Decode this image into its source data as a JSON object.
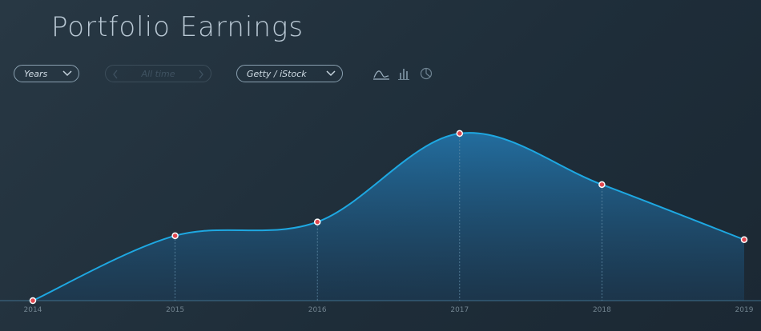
{
  "controls": {
    "period": "Years",
    "range": "All time",
    "source": "Getty / iStock"
  },
  "chart_data": {
    "type": "area",
    "title": "Portfolio Earnings",
    "categories": [
      "2014",
      "2015",
      "2016",
      "2017",
      "2018",
      "2019"
    ],
    "values": [
      0,
      33,
      40,
      85,
      59,
      31
    ],
    "color": "#1ea8e2",
    "ylim": [
      0,
      100
    ]
  }
}
